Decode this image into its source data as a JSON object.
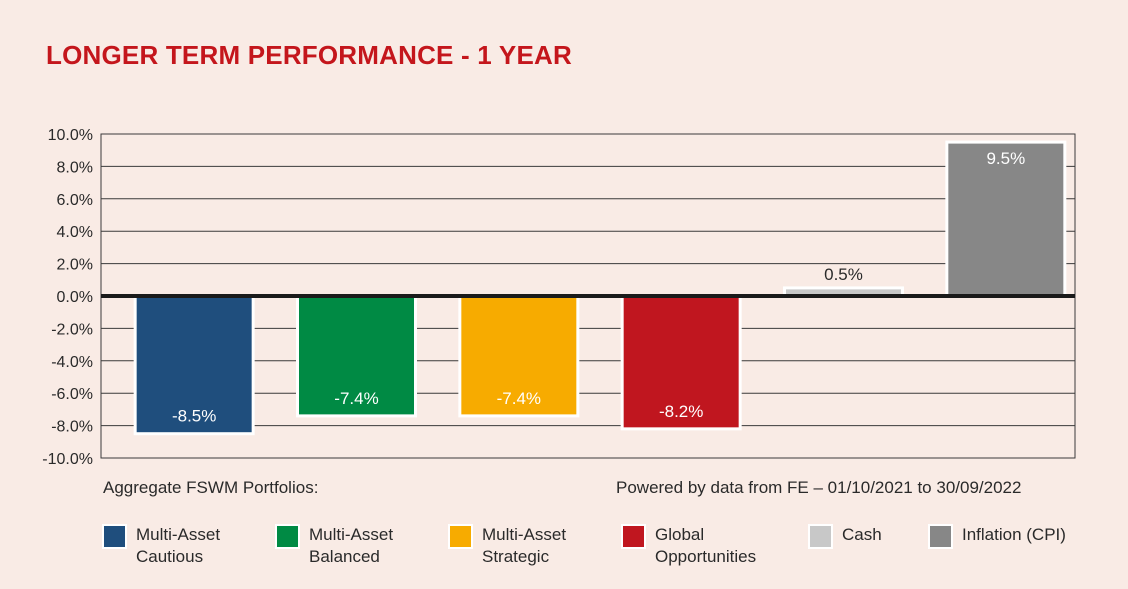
{
  "title": "LONGER TERM PERFORMANCE - 1 YEAR",
  "caption_left": "Aggregate FSWM Portfolios:",
  "caption_right": "Powered by data from FE – 01/10/2021 to 30/09/2022",
  "colors": {
    "background": "#f9ebe5",
    "title": "#c4161c",
    "cautious": "#1f4e7d",
    "balanced": "#008a44",
    "strategic": "#f7ab00",
    "global": "#c0161f",
    "cash": "#c8c8c8",
    "inflation": "#878787"
  },
  "legend": [
    {
      "line1": "Multi-Asset",
      "line2": "Cautious",
      "color_key": "cautious"
    },
    {
      "line1": "Multi-Asset",
      "line2": "Balanced",
      "color_key": "balanced"
    },
    {
      "line1": "Multi-Asset",
      "line2": "Strategic",
      "color_key": "strategic"
    },
    {
      "line1": "Global",
      "line2": "Opportunities",
      "color_key": "global"
    },
    {
      "line1": "Cash",
      "line2": "",
      "color_key": "cash"
    },
    {
      "line1": "Inflation (CPI)",
      "line2": "",
      "color_key": "inflation"
    }
  ],
  "chart_data": {
    "type": "bar",
    "title": "LONGER TERM PERFORMANCE - 1 YEAR",
    "xlabel": "",
    "ylabel": "",
    "categories": [
      "Multi-Asset Cautious",
      "Multi-Asset Balanced",
      "Multi-Asset Strategic",
      "Global Opportunities",
      "Cash",
      "Inflation (CPI)"
    ],
    "values": [
      -8.5,
      -7.4,
      -7.4,
      -8.2,
      0.5,
      9.5
    ],
    "value_labels": [
      "-8.5%",
      "-7.4%",
      "-7.4%",
      "-8.2%",
      "0.5%",
      "9.5%"
    ],
    "color_keys": [
      "cautious",
      "balanced",
      "strategic",
      "global",
      "cash",
      "inflation"
    ],
    "ylim": [
      -10,
      10
    ],
    "yticks": [
      10,
      8,
      6,
      4,
      2,
      0,
      -2,
      -4,
      -6,
      -8,
      -10
    ],
    "ytick_labels": [
      "10.0%",
      "8.0%",
      "6.0%",
      "4.0%",
      "2.0%",
      "0.0%",
      "-2.0%",
      "-4.0%",
      "-6.0%",
      "-8.0%",
      "-10.0%"
    ],
    "grid": true,
    "legend_position": "bottom"
  }
}
